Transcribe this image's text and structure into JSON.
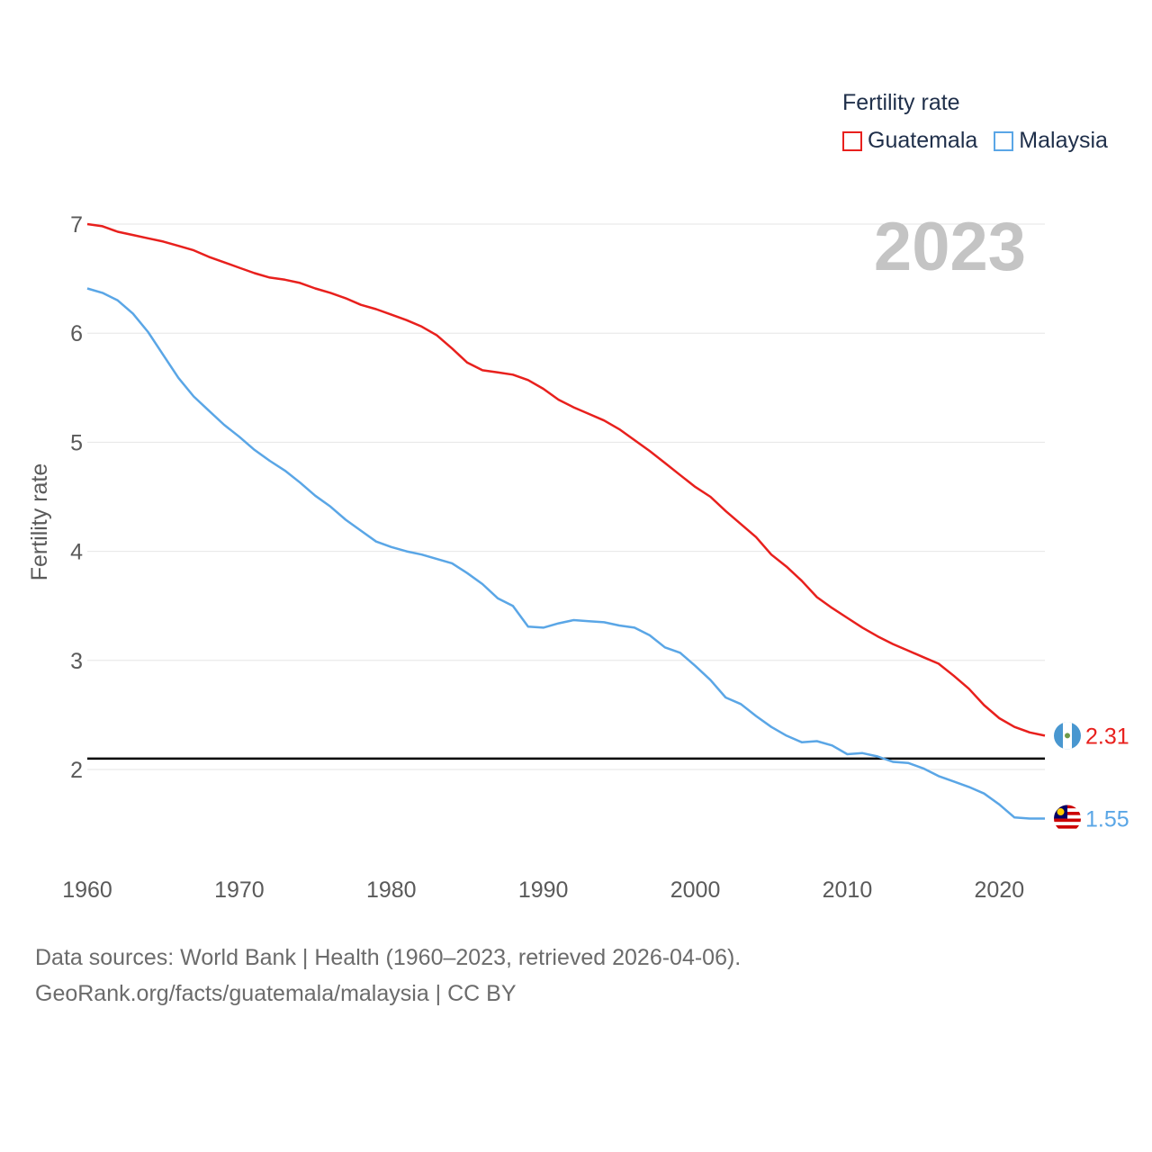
{
  "legend": {
    "title": "Fertility rate",
    "items": [
      {
        "label": "Guatemala",
        "color": "#e8201d"
      },
      {
        "label": "Malaysia",
        "color": "#5aa6e6"
      }
    ]
  },
  "footer": {
    "line1": "Data sources: World Bank | Health (1960–2023, retrieved 2026-04-06).",
    "line2": "GeoRank.org/facts/guatemala/malaysia | CC BY"
  },
  "chart_data": {
    "type": "line",
    "year_label": "2023",
    "ylabel": "Fertility rate",
    "xlabel": "",
    "xlim": [
      1960,
      2023
    ],
    "ylim": [
      1.2,
      7.2
    ],
    "x_ticks": [
      1960,
      1970,
      1980,
      1990,
      2000,
      2010,
      2020
    ],
    "y_ticks": [
      2,
      3,
      4,
      5,
      6,
      7
    ],
    "reference_line": 2.1,
    "x": [
      1960,
      1961,
      1962,
      1963,
      1964,
      1965,
      1966,
      1967,
      1968,
      1969,
      1970,
      1971,
      1972,
      1973,
      1974,
      1975,
      1976,
      1977,
      1978,
      1979,
      1980,
      1981,
      1982,
      1983,
      1984,
      1985,
      1986,
      1987,
      1988,
      1989,
      1990,
      1991,
      1992,
      1993,
      1994,
      1995,
      1996,
      1997,
      1998,
      1999,
      2000,
      2001,
      2002,
      2003,
      2004,
      2005,
      2006,
      2007,
      2008,
      2009,
      2010,
      2011,
      2012,
      2013,
      2014,
      2015,
      2016,
      2017,
      2018,
      2019,
      2020,
      2021,
      2022,
      2023
    ],
    "series": [
      {
        "name": "Guatemala",
        "color": "#e8201d",
        "end_label": "2.31",
        "values": [
          7.0,
          6.98,
          6.93,
          6.9,
          6.87,
          6.84,
          6.8,
          6.76,
          6.7,
          6.65,
          6.6,
          6.55,
          6.51,
          6.49,
          6.46,
          6.41,
          6.37,
          6.32,
          6.26,
          6.22,
          6.17,
          6.12,
          6.06,
          5.98,
          5.86,
          5.73,
          5.66,
          5.64,
          5.62,
          5.57,
          5.49,
          5.39,
          5.32,
          5.26,
          5.2,
          5.12,
          5.02,
          4.92,
          4.81,
          4.7,
          4.59,
          4.5,
          4.37,
          4.25,
          4.13,
          3.97,
          3.86,
          3.73,
          3.58,
          3.48,
          3.39,
          3.3,
          3.22,
          3.15,
          3.09,
          3.03,
          2.97,
          2.86,
          2.74,
          2.59,
          2.47,
          2.39,
          2.34,
          2.31
        ]
      },
      {
        "name": "Malaysia",
        "color": "#5aa6e6",
        "end_label": "1.55",
        "values": [
          6.41,
          6.37,
          6.3,
          6.18,
          6.01,
          5.8,
          5.59,
          5.42,
          5.29,
          5.16,
          5.05,
          4.93,
          4.83,
          4.74,
          4.63,
          4.51,
          4.41,
          4.29,
          4.19,
          4.09,
          4.04,
          4.0,
          3.97,
          3.93,
          3.89,
          3.8,
          3.7,
          3.57,
          3.5,
          3.31,
          3.3,
          3.34,
          3.37,
          3.36,
          3.35,
          3.32,
          3.3,
          3.23,
          3.12,
          3.07,
          2.95,
          2.82,
          2.66,
          2.6,
          2.49,
          2.39,
          2.31,
          2.25,
          2.26,
          2.22,
          2.14,
          2.15,
          2.12,
          2.07,
          2.06,
          2.01,
          1.94,
          1.89,
          1.84,
          1.78,
          1.68,
          1.56,
          1.55,
          1.55
        ]
      }
    ]
  }
}
